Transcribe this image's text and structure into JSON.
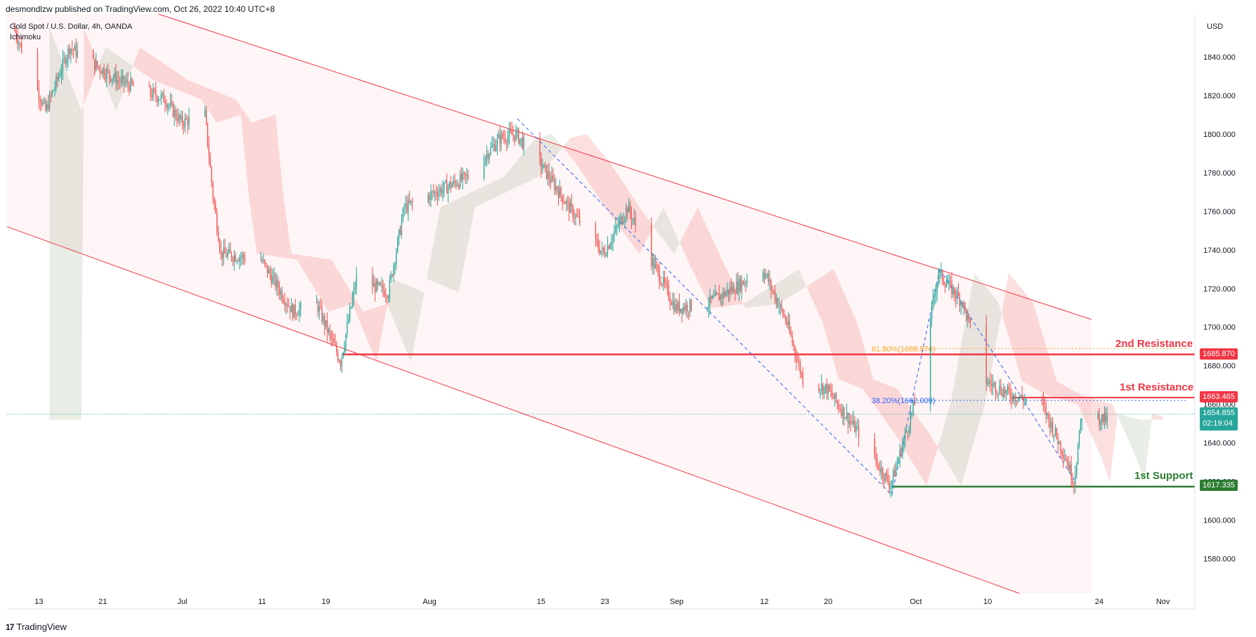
{
  "header": {
    "publisher": "desmondlzw published on TradingView.com, Oct 26, 2022 10:40 UTC+8",
    "symbol": "Gold Spot / U.S. Dollar, 4h, OANDA",
    "indicator": "Ichimoku",
    "currency": "USD"
  },
  "footer": {
    "brand": "TradingView",
    "logo_text": "17"
  },
  "colors": {
    "up": "#26a69a",
    "down": "#ef5350",
    "channel": "#f23645",
    "resistance": "#f23645",
    "support": "#2e7d32",
    "fib_618": "#f9a825",
    "fib_382": "#2962ff",
    "cloud_red": "#fcdcdc",
    "cloud_green": "#e6ebe2"
  },
  "levels": {
    "resistance2": {
      "label": "2nd Resistance",
      "price": "1685.870"
    },
    "resistance1": {
      "label": "1st Resistance",
      "price": "1663.465"
    },
    "support1": {
      "label": "1st Support",
      "price": "1617.335"
    },
    "current": {
      "price": "1654.855",
      "countdown": "02:19:04"
    }
  },
  "fibs": {
    "fib618": "61.80%(1688.874)",
    "fib382": "38.20%(1662.009)"
  },
  "chart_data": {
    "type": "candlestick",
    "title": "Gold Spot / U.S. Dollar, 4h, OANDA",
    "ylabel": "USD",
    "ylim": [
      1562,
      1860
    ],
    "y_ticks": [
      1580,
      1600,
      1620,
      1640,
      1660,
      1680,
      1700,
      1720,
      1740,
      1760,
      1780,
      1800,
      1820,
      1840
    ],
    "y_tick_labels": [
      "1580.000",
      "1600.000",
      "1620.000",
      "1640.000",
      "1660.000",
      "1680.000",
      "1700.000",
      "1720.000",
      "1740.000",
      "1760.000",
      "1780.000",
      "1800.000",
      "1820.000",
      "1840.000"
    ],
    "x_ticks": [
      "13",
      "21",
      "Jul",
      "11",
      "19",
      "Aug",
      "15",
      "23",
      "Sep",
      "12",
      "20",
      "Oct",
      "10",
      "24",
      "Nov"
    ],
    "x_dates": [
      "2022-06-13",
      "2022-06-21",
      "2022-07-01",
      "2022-07-11",
      "2022-07-19",
      "2022-08-01",
      "2022-08-15",
      "2022-08-23",
      "2022-09-01",
      "2022-09-12",
      "2022-09-20",
      "2022-10-01",
      "2022-10-10",
      "2022-10-24",
      "2022-11-01"
    ],
    "price_path": [
      [
        "2022-06-10",
        1855
      ],
      [
        "2022-06-14",
        1812
      ],
      [
        "2022-06-17",
        1845
      ],
      [
        "2022-06-23",
        1828
      ],
      [
        "2022-06-29",
        1818
      ],
      [
        "2022-07-01",
        1806
      ],
      [
        "2022-07-04",
        1810
      ],
      [
        "2022-07-05",
        1768
      ],
      [
        "2022-07-06",
        1738
      ],
      [
        "2022-07-11",
        1735
      ],
      [
        "2022-07-15",
        1708
      ],
      [
        "2022-07-18",
        1712
      ],
      [
        "2022-07-21",
        1682
      ],
      [
        "2022-07-23",
        1725
      ],
      [
        "2022-07-27",
        1718
      ],
      [
        "2022-07-29",
        1762
      ],
      [
        "2022-08-03",
        1772
      ],
      [
        "2022-08-06",
        1778
      ],
      [
        "2022-08-10",
        1798
      ],
      [
        "2022-08-12",
        1800
      ],
      [
        "2022-08-15",
        1785
      ],
      [
        "2022-08-19",
        1760
      ],
      [
        "2022-08-23",
        1738
      ],
      [
        "2022-08-26",
        1762
      ],
      [
        "2022-08-29",
        1735
      ],
      [
        "2022-09-01",
        1710
      ],
      [
        "2022-09-05",
        1712
      ],
      [
        "2022-09-09",
        1722
      ],
      [
        "2022-09-12",
        1730
      ],
      [
        "2022-09-15",
        1702
      ],
      [
        "2022-09-17",
        1673
      ],
      [
        "2022-09-20",
        1668
      ],
      [
        "2022-09-24",
        1645
      ],
      [
        "2022-09-28",
        1618
      ],
      [
        "2022-10-01",
        1660
      ],
      [
        "2022-10-04",
        1728
      ],
      [
        "2022-10-07",
        1713
      ],
      [
        "2022-10-10",
        1672
      ],
      [
        "2022-10-13",
        1665
      ],
      [
        "2022-10-17",
        1660
      ],
      [
        "2022-10-20",
        1632
      ],
      [
        "2022-10-21",
        1620
      ],
      [
        "2022-10-22",
        1655
      ],
      [
        "2022-10-25",
        1652
      ]
    ],
    "channel_upper": [
      [
        "2022-06-28",
        1860
      ],
      [
        "2022-10-23",
        1704
      ]
    ],
    "channel_lower": [
      [
        "2022-06-09",
        1752
      ],
      [
        "2022-10-14",
        1562
      ]
    ],
    "horizontal_levels": [
      {
        "name": "2nd Resistance",
        "price": 1685.87
      },
      {
        "name": "1st Resistance",
        "price": 1663.465
      },
      {
        "name": "1st Support",
        "price": 1617.335
      }
    ],
    "fibonacci": [
      {
        "ratio": "61.80%",
        "price": 1688.874
      },
      {
        "ratio": "38.20%",
        "price": 1662.009
      }
    ],
    "last_price": 1654.855
  }
}
